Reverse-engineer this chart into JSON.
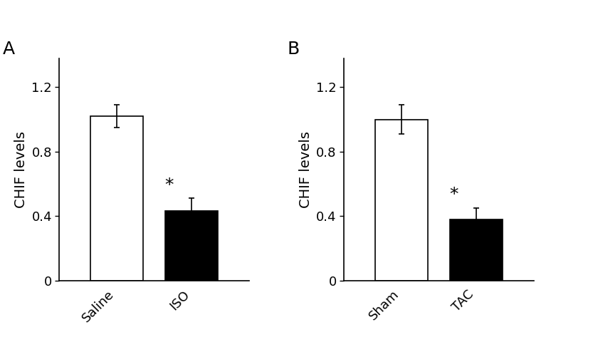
{
  "panel_A": {
    "label": "A",
    "categories": [
      "Saline",
      "ISO"
    ],
    "values": [
      1.02,
      0.43
    ],
    "errors": [
      0.07,
      0.08
    ],
    "colors": [
      "white",
      "black"
    ],
    "edgecolors": [
      "black",
      "black"
    ],
    "ylabel": "CHIF levels",
    "ylim": [
      0,
      1.38
    ],
    "yticks": [
      0,
      0.4,
      0.8,
      1.2
    ],
    "significance": [
      false,
      true
    ],
    "sig_label": "*"
  },
  "panel_B": {
    "label": "B",
    "categories": [
      "Sham",
      "TAC"
    ],
    "values": [
      1.0,
      0.38
    ],
    "errors": [
      0.09,
      0.07
    ],
    "colors": [
      "white",
      "black"
    ],
    "edgecolors": [
      "black",
      "black"
    ],
    "ylabel": "CHIF levels",
    "ylim": [
      0,
      1.38
    ],
    "yticks": [
      0,
      0.4,
      0.8,
      1.2
    ],
    "significance": [
      false,
      true
    ],
    "sig_label": "*"
  },
  "bar_width": 0.35,
  "bar_spacing": 0.5,
  "background_color": "white",
  "tick_label_fontsize": 13,
  "ylabel_fontsize": 14,
  "panel_label_fontsize": 18,
  "sig_fontsize": 18
}
